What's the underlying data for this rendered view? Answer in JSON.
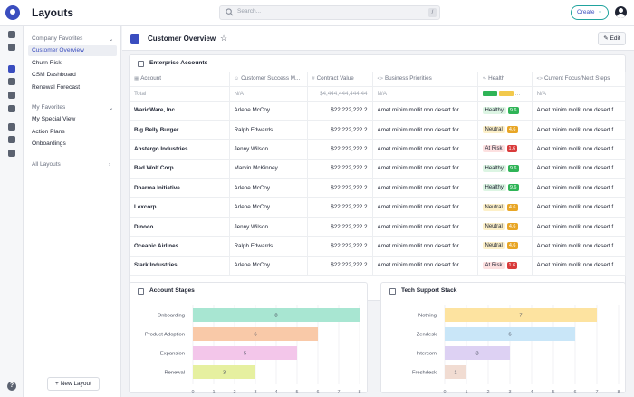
{
  "app": {
    "title": "Layouts"
  },
  "search": {
    "placeholder": "Search...",
    "shortcut": "/"
  },
  "header": {
    "create_label": "Create"
  },
  "nav": {
    "groups": [
      {
        "label": "Company Favorites",
        "items": [
          "Customer Overview",
          "Churn Risk",
          "CSM Dashboard",
          "Renewal Forecast"
        ]
      },
      {
        "label": "My Favorites",
        "items": [
          "My Special View",
          "Action Plans",
          "Onboardings"
        ]
      }
    ],
    "all_layouts": "All Layouts",
    "new_layout": "+ New Layout"
  },
  "page": {
    "title": "Customer Overview",
    "edit_label": "Edit"
  },
  "table": {
    "title": "Enterprise Accounts",
    "columns": [
      "Account",
      "Customer Success M...",
      "Contract Value",
      "Business Priorities",
      "Health",
      "Current Focus/Next Steps"
    ],
    "total": {
      "label": "Total",
      "csm": "N/A",
      "value": "$4,444,444,444.44",
      "priorities": "N/A",
      "focus": "N/A"
    },
    "health_summary": [
      {
        "color": "#2fb457",
        "share": 0.35
      },
      {
        "color": "#f2c94c",
        "share": 0.35
      },
      {
        "color": "#d93b3b",
        "share": 0.3
      }
    ],
    "rows": [
      {
        "account": "WarioWare, Inc.",
        "csm": "Arlene McCoy",
        "value": "$22,222,222.2",
        "priorities": "Amet minim mollit non desert for...",
        "health": "Healthy",
        "score": "9.6",
        "focus": "Amet minim mollit non desert for..."
      },
      {
        "account": "Big Belly Burger",
        "csm": "Ralph Edwards",
        "value": "$22,222,222.2",
        "priorities": "Amet minim mollit non desert for...",
        "health": "Neutral",
        "score": "4.6",
        "focus": "Amet minim mollit non desert for..."
      },
      {
        "account": "Abstergo Industries",
        "csm": "Jenny Wilson",
        "value": "$22,222,222.2",
        "priorities": "Amet minim mollit non desert for...",
        "health": "At Risk",
        "score": "1.6",
        "focus": "Amet minim mollit non desert for..."
      },
      {
        "account": "Bad Wolf Corp.",
        "csm": "Marvin McKinney",
        "value": "$22,222,222.2",
        "priorities": "Amet minim mollit non desert for...",
        "health": "Healthy",
        "score": "9.6",
        "focus": "Amet minim mollit non desert for..."
      },
      {
        "account": "Dharma Initiative",
        "csm": "Arlene McCoy",
        "value": "$22,222,222.2",
        "priorities": "Amet minim mollit non desert for...",
        "health": "Healthy",
        "score": "9.6",
        "focus": "Amet minim mollit non desert for..."
      },
      {
        "account": "Lexcorp",
        "csm": "Arlene McCoy",
        "value": "$22,222,222.2",
        "priorities": "Amet minim mollit non desert for...",
        "health": "Neutral",
        "score": "4.6",
        "focus": "Amet minim mollit non desert for..."
      },
      {
        "account": "Dinoco",
        "csm": "Jenny Wilson",
        "value": "$22,222,222.2",
        "priorities": "Amet minim mollit non desert for...",
        "health": "Neutral",
        "score": "4.6",
        "focus": "Amet minim mollit non desert for..."
      },
      {
        "account": "Oceanic Airlines",
        "csm": "Ralph Edwards",
        "value": "$22,222,222.2",
        "priorities": "Amet minim mollit non desert for...",
        "health": "Neutral",
        "score": "4.6",
        "focus": "Amet minim mollit non desert for..."
      },
      {
        "account": "Stark Industries",
        "csm": "Arlene McCoy",
        "value": "$22,222,222.2",
        "priorities": "Amet minim mollit non desert for...",
        "health": "At Risk",
        "score": "1.6",
        "focus": "Amet minim mollit non desert for..."
      }
    ]
  },
  "chart_data": [
    {
      "type": "bar",
      "orientation": "horizontal",
      "title": "Account Stages",
      "categories": [
        "Onboarding",
        "Product Adoption",
        "Expansion",
        "Renewal"
      ],
      "values": [
        8,
        6,
        5,
        3
      ],
      "colors": [
        "#a8e6d2",
        "#f9c9a8",
        "#f3c6ea",
        "#e6f0a0"
      ],
      "xlim": [
        0,
        8
      ],
      "xticks": [
        0,
        1,
        2,
        3,
        4,
        5,
        6,
        7,
        8
      ],
      "grid": true
    },
    {
      "type": "bar",
      "orientation": "horizontal",
      "title": "Tech Support Stack",
      "categories": [
        "Nothing",
        "Zendesk",
        "Intercom",
        "Freshdesk"
      ],
      "values": [
        7,
        6,
        3,
        1
      ],
      "colors": [
        "#fde3a0",
        "#c9e6f8",
        "#ddd1f3",
        "#f1dcd2"
      ],
      "xlim": [
        0,
        8
      ],
      "xticks": [
        0,
        1,
        2,
        3,
        4,
        5,
        6,
        7,
        8
      ],
      "grid": true
    }
  ]
}
